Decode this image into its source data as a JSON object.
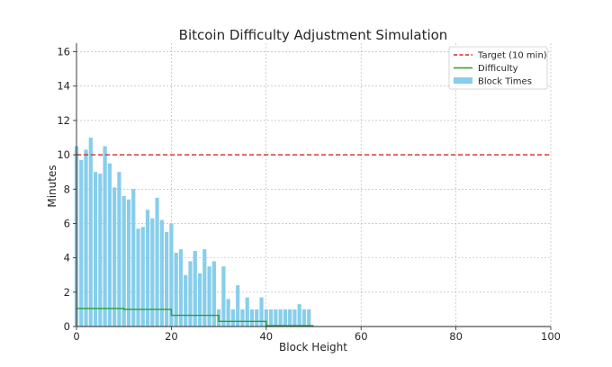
{
  "chart_data": {
    "type": "bar",
    "title": "Bitcoin Difficulty Adjustment Simulation",
    "xlabel": "Block Height",
    "ylabel": "Minutes",
    "xlim": [
      0,
      100
    ],
    "ylim": [
      0,
      16.5
    ],
    "grid": true,
    "xticks": [
      0,
      20,
      40,
      60,
      80,
      100
    ],
    "yticks": [
      0,
      2,
      4,
      6,
      8,
      10,
      12,
      14,
      16
    ],
    "legend_position": "top-right",
    "series": [
      {
        "name": "Target (10 min)",
        "kind": "hline",
        "value": 10,
        "color": "#d62728",
        "style": "dashed"
      },
      {
        "name": "Difficulty",
        "kind": "line",
        "color": "#2ca02c",
        "x": [
          0,
          1,
          2,
          3,
          4,
          5,
          6,
          7,
          8,
          9,
          10,
          11,
          12,
          13,
          14,
          15,
          16,
          17,
          18,
          19,
          20,
          21,
          22,
          23,
          24,
          25,
          26,
          27,
          28,
          29,
          30,
          31,
          32,
          33,
          34,
          35,
          36,
          37,
          38,
          39,
          40,
          41,
          42,
          43,
          44,
          45,
          46,
          47,
          48,
          49,
          50
        ],
        "values": [
          1.05,
          1.05,
          1.05,
          1.05,
          1.05,
          1.05,
          1.05,
          1.05,
          1.05,
          1.05,
          1.0,
          1.0,
          1.0,
          1.0,
          1.0,
          1.0,
          1.0,
          1.0,
          1.0,
          1.0,
          0.65,
          0.65,
          0.65,
          0.65,
          0.65,
          0.65,
          0.65,
          0.65,
          0.65,
          0.65,
          0.3,
          0.3,
          0.3,
          0.3,
          0.3,
          0.3,
          0.3,
          0.3,
          0.3,
          0.3,
          0.05,
          0.05,
          0.05,
          0.05,
          0.05,
          0.05,
          0.05,
          0.05,
          0.05,
          0.05,
          0.05
        ]
      },
      {
        "name": "Block Times",
        "kind": "bar",
        "color": "#87ceeb",
        "x": [
          0,
          1,
          2,
          3,
          4,
          5,
          6,
          7,
          8,
          9,
          10,
          11,
          12,
          13,
          14,
          15,
          16,
          17,
          18,
          19,
          20,
          21,
          22,
          23,
          24,
          25,
          26,
          27,
          28,
          29,
          30,
          31,
          32,
          33,
          34,
          35,
          36,
          37,
          38,
          39,
          40,
          41,
          42,
          43,
          44,
          45,
          46,
          47,
          48,
          49
        ],
        "values": [
          10.5,
          9.7,
          10.3,
          11.0,
          9.0,
          8.9,
          10.5,
          9.5,
          8.1,
          9.0,
          7.6,
          7.4,
          8.0,
          5.7,
          5.8,
          6.8,
          6.3,
          7.5,
          6.2,
          5.5,
          6.0,
          4.3,
          4.5,
          3.0,
          3.8,
          4.4,
          3.1,
          4.5,
          3.5,
          3.8,
          1.0,
          3.5,
          1.6,
          1.0,
          2.4,
          1.0,
          1.7,
          1.0,
          1.0,
          1.7,
          1.0,
          1.0,
          1.0,
          1.0,
          1.0,
          1.0,
          1.0,
          1.3,
          1.0,
          1.0
        ]
      }
    ]
  }
}
